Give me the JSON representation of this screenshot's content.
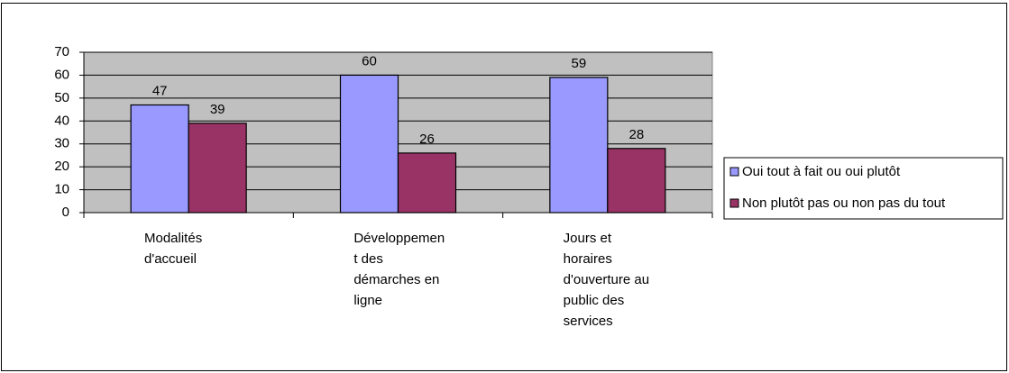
{
  "chart_data": {
    "type": "bar",
    "categories": [
      "Modalités d'accueil",
      "Développement des démarches en ligne",
      "Jours et horaires d'ouverture au public des services"
    ],
    "series": [
      {
        "name": "Oui tout à fait ou oui plutôt",
        "color": "#9999ff",
        "values": [
          47,
          60,
          59
        ]
      },
      {
        "name": "Non plutôt pas ou non pas du tout",
        "color": "#993366",
        "values": [
          39,
          26,
          28
        ]
      }
    ],
    "ylim": [
      0,
      70
    ],
    "yticks": [
      0,
      10,
      20,
      30,
      40,
      50,
      60,
      70
    ],
    "grid": true,
    "legend": "right"
  }
}
